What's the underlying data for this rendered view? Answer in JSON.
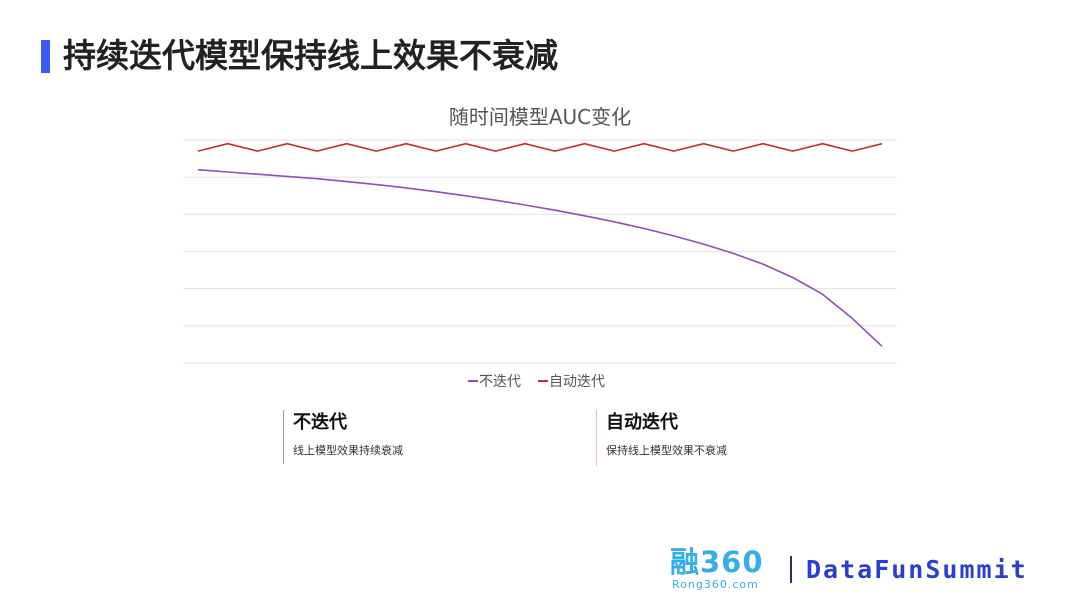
{
  "slide": {
    "title": "持续迭代模型保持线上效果不衰减"
  },
  "chart_data": {
    "type": "line",
    "title": "随时间模型AUC变化",
    "xlabel": "",
    "ylabel": "",
    "grid": true,
    "legend_position": "bottom",
    "x": [
      0,
      1,
      2,
      3,
      4,
      5,
      6,
      7,
      8,
      9,
      10,
      11,
      12,
      13,
      14,
      15,
      16,
      17,
      18,
      19,
      20,
      21,
      22,
      23
    ],
    "ylim": [
      0,
      6
    ],
    "series": [
      {
        "name": "不迭代",
        "color": "#8e4fb8",
        "values": [
          5.2,
          5.14,
          5.08,
          5.02,
          4.96,
          4.88,
          4.8,
          4.71,
          4.61,
          4.5,
          4.38,
          4.25,
          4.11,
          3.96,
          3.8,
          3.62,
          3.42,
          3.2,
          2.95,
          2.66,
          2.3,
          1.85,
          1.2,
          0.45
        ]
      },
      {
        "name": "自动迭代",
        "color": "#c0302f",
        "values": [
          5.7,
          5.9,
          5.7,
          5.9,
          5.7,
          5.9,
          5.7,
          5.9,
          5.7,
          5.9,
          5.7,
          5.9,
          5.7,
          5.9,
          5.7,
          5.9,
          5.7,
          5.9,
          5.7,
          5.9,
          5.7,
          5.9,
          5.7,
          5.9
        ]
      }
    ]
  },
  "cards": [
    {
      "title": "不迭代",
      "desc": "线上模型效果持续衰减"
    },
    {
      "title": "自动迭代",
      "desc": "保持线上模型效果不衰减"
    }
  ],
  "logos": {
    "rong360_main": "融360",
    "rong360_sub": "Rong360.com",
    "datafun": "DataFunSummit"
  }
}
